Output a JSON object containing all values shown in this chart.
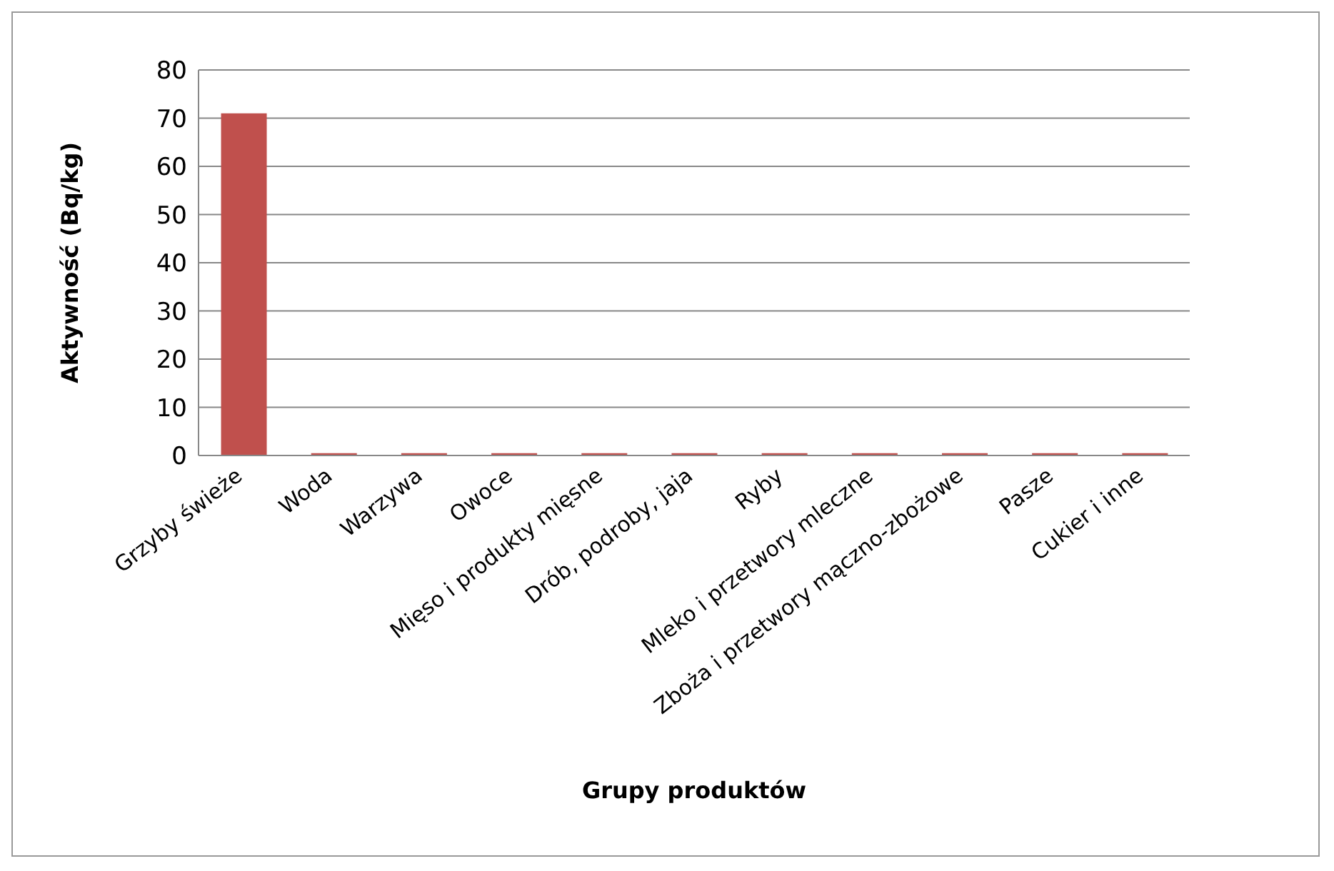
{
  "chart_data": {
    "type": "bar",
    "xlabel": "Grupy produktów",
    "ylabel": "Aktywność  (Bq/kg)",
    "categories": [
      "Grzyby świeże",
      "Woda",
      "Warzywa",
      "Owoce",
      "Mięso i produkty mięsne",
      "Drób, podroby, jaja",
      "Ryby",
      "Mleko i przetwory mleczne",
      "Zboża i przetwory mączno-zbożowe",
      "Pasze",
      "Cukier i inne"
    ],
    "values": [
      71,
      0.5,
      0.5,
      0.5,
      0.5,
      0.5,
      0.5,
      0.5,
      0.5,
      0.5,
      0.5
    ],
    "color": "#c0504d",
    "ylim": [
      0,
      80
    ],
    "yticks": [
      0,
      10,
      20,
      30,
      40,
      50,
      60,
      70,
      80
    ],
    "grid": "y"
  }
}
